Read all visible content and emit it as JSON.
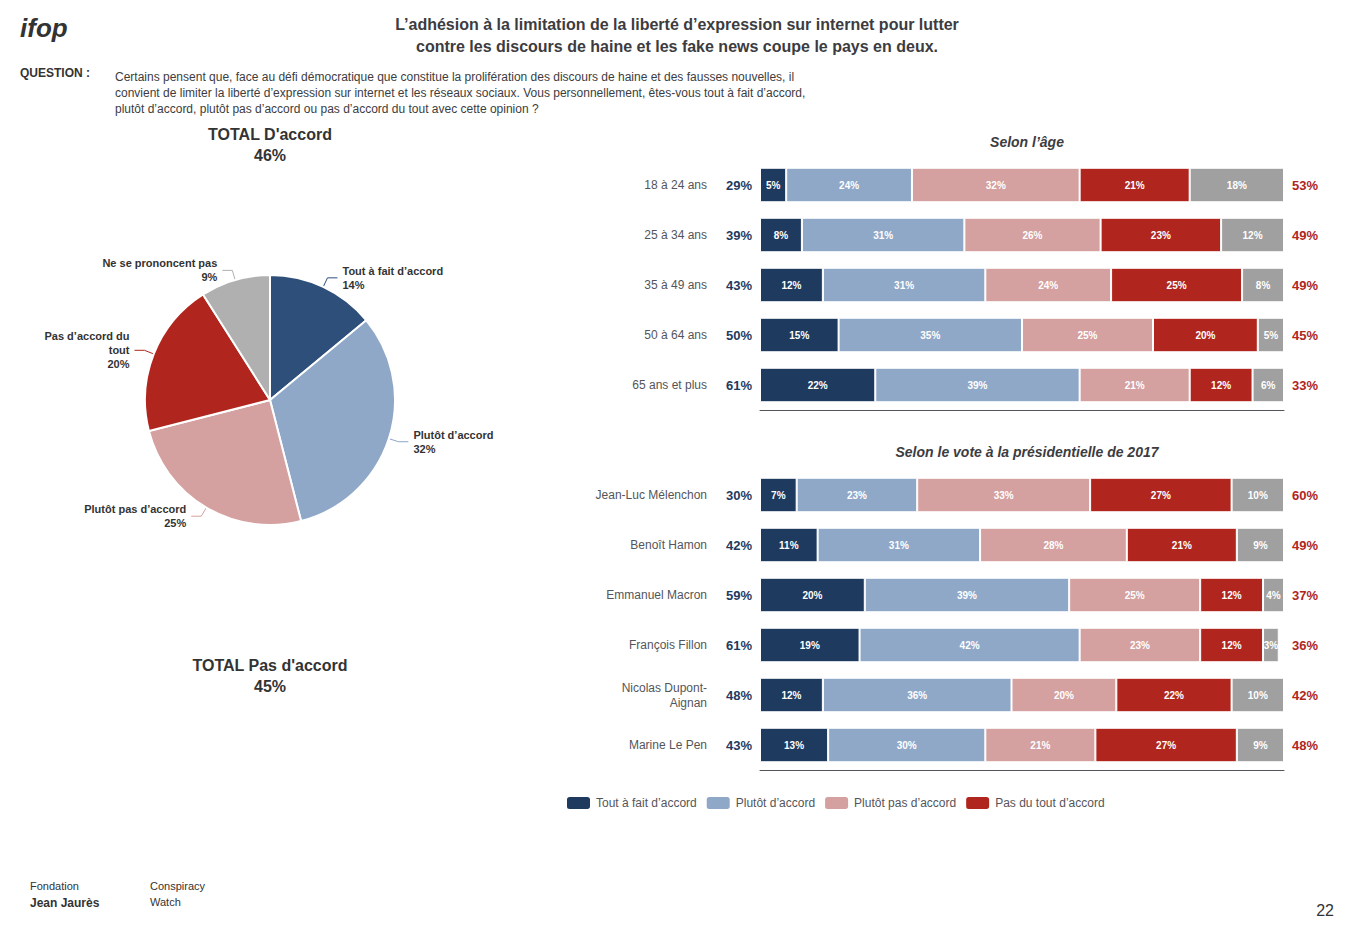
{
  "chart_data": [
    {
      "type": "pie",
      "title": "L’adhésion à la limitation de la liberté d’expression sur internet pour lutter\ncontre les discours de haine et les fake news coupe le pays en deux.",
      "subtitle": "Certains pensent que, face au défi démocratique que constitue la prolifération des discours de haine et des fausses nouvelles, il\nconvient de limiter la liberté d’expression sur internet et les réseaux sociaux. Vous personnellement, êtes-vous tout à fait d’accord,\nplutôt d’accord, plutôt pas d’accord ou pas d’accord du tout avec cette opinion ?",
      "categories": [
        "Tout à fait d’accord",
        "Plutôt d’accord",
        "Plutôt pas d’accord",
        "Pas d’accord du\ntout",
        "Ne se prononcent pas"
      ],
      "values": [
        14,
        32,
        25,
        20,
        9
      ],
      "value_labels": [
        "14%",
        "32%",
        "25%",
        "20%",
        "9%"
      ],
      "colors": [
        "#2e4f7a",
        "#8fa8c8",
        "#d4a0a0",
        "#b0261e",
        "#b0b0b0"
      ],
      "data_labels": true,
      "annotations": [
        "ifop",
        "QUESTION :",
        "TOTAL D'accord\n46%",
        "TOTAL Pas d'accord\n45%",
        "22",
        "Fondation",
        "Jean Jaurès",
        "Conspiracy\nWatch"
      ]
    },
    {
      "type": "bar",
      "orientation": "horizontal",
      "stacked": true,
      "data_labels": true,
      "grid": false,
      "tick_labels": "y",
      "title": "Selon l’âge",
      "categories": [
        "18 à 24 ans",
        "25 à 34 ans",
        "35 à 49 ans",
        "50 à 64 ans",
        "65 ans et plus"
      ],
      "left_labels": [
        "29%",
        "39%",
        "43%",
        "50%",
        "61%"
      ],
      "right_labels": [
        "53%",
        "49%",
        "49%",
        "45%",
        "33%"
      ],
      "xlim": [
        0,
        100
      ],
      "series": [
        {
          "name": "Tout à fait d’accord",
          "color": "#1e3a5f",
          "values": [
            5,
            8,
            12,
            15,
            22
          ],
          "value_labels": [
            "5%",
            "8%",
            "12%",
            "15%",
            "22%"
          ]
        },
        {
          "name": "Plutôt d’accord",
          "color": "#8fa8c8",
          "values": [
            24,
            31,
            31,
            35,
            39
          ],
          "value_labels": [
            "24%",
            "31%",
            "31%",
            "35%",
            "39%"
          ]
        },
        {
          "name": "Plutôt pas d’accord",
          "color": "#d4a0a0",
          "values": [
            32,
            26,
            24,
            25,
            21
          ],
          "value_labels": [
            "32%",
            "26%",
            "24%",
            "25%",
            "21%"
          ]
        },
        {
          "name": "Pas du tout d’accord",
          "color": "#b0261e",
          "values": [
            21,
            23,
            25,
            20,
            12
          ],
          "value_labels": [
            "21%",
            "23%",
            "25%",
            "20%",
            "12%"
          ]
        },
        {
          "color": "#a0a0a0",
          "values": [
            18,
            12,
            8,
            5,
            6
          ],
          "value_labels": [
            "18%",
            "12%",
            "8%",
            "5%",
            "6%"
          ]
        }
      ]
    },
    {
      "type": "bar",
      "orientation": "horizontal",
      "stacked": true,
      "data_labels": true,
      "grid": false,
      "tick_labels": "y",
      "legend": "bottom",
      "title": "Selon le vote à la présidentielle de 2017",
      "categories": [
        "Jean-Luc Mélenchon",
        "Benoît Hamon",
        "Emmanuel Macron",
        "François Fillon",
        "Nicolas Dupont-\nAignan",
        "Marine Le Pen"
      ],
      "left_labels": [
        "30%",
        "42%",
        "59%",
        "61%",
        "48%",
        "43%"
      ],
      "right_labels": [
        "60%",
        "49%",
        "37%",
        "36%",
        "42%",
        "48%"
      ],
      "xlim": [
        0,
        100
      ],
      "series": [
        {
          "name": "Tout à fait d’accord",
          "color": "#1e3a5f",
          "values": [
            7,
            11,
            20,
            19,
            12,
            13
          ],
          "value_labels": [
            "7%",
            "11%",
            "20%",
            "19%",
            "12%",
            "13%"
          ]
        },
        {
          "name": "Plutôt d’accord",
          "color": "#8fa8c8",
          "values": [
            23,
            31,
            39,
            42,
            36,
            30
          ],
          "value_labels": [
            "23%",
            "31%",
            "39%",
            "42%",
            "36%",
            "30%"
          ]
        },
        {
          "name": "Plutôt pas d’accord",
          "color": "#d4a0a0",
          "values": [
            33,
            28,
            25,
            23,
            20,
            21
          ],
          "value_labels": [
            "33%",
            "28%",
            "25%",
            "23%",
            "20%",
            "21%"
          ]
        },
        {
          "name": "Pas du tout d’accord",
          "color": "#b0261e",
          "values": [
            27,
            21,
            12,
            12,
            22,
            27
          ],
          "value_labels": [
            "27%",
            "21%",
            "12%",
            "12%",
            "22%",
            "27%"
          ]
        },
        {
          "color": "#a0a0a0",
          "values": [
            10,
            9,
            4,
            3,
            10,
            9
          ],
          "value_labels": [
            "10%",
            "9%",
            "4%",
            "3%",
            "10%",
            "9%"
          ]
        }
      ]
    }
  ]
}
